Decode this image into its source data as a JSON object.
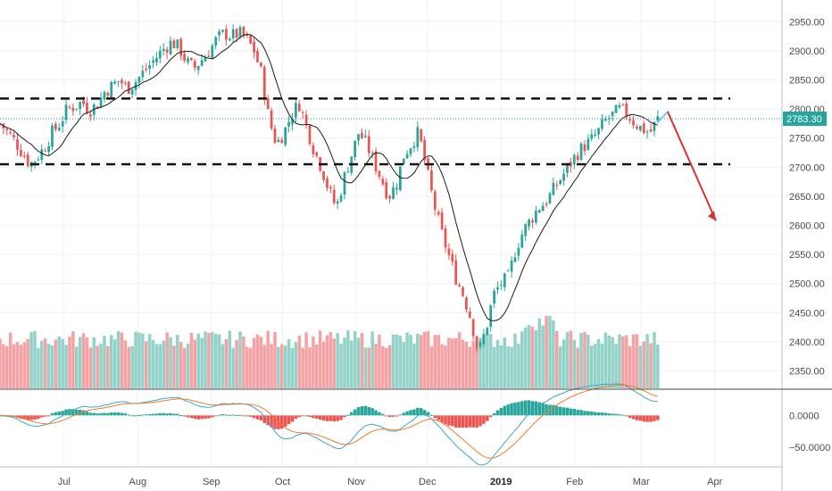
{
  "chart_data": {
    "type": "candlestick",
    "symbol_price_label": "2783.30",
    "current_price": 2783.3,
    "y_axis": {
      "ticks": [
        "2950.00",
        "2900.00",
        "2850.00",
        "2800.00",
        "2750.00",
        "2700.00",
        "2650.00",
        "2600.00",
        "2550.00",
        "2500.00",
        "2450.00",
        "2400.00",
        "2350.00"
      ],
      "range": [
        2320,
        2975
      ]
    },
    "x_axis": {
      "ticks": [
        {
          "label": "Jul",
          "date": "2018-07-01",
          "bold": false
        },
        {
          "label": "Aug",
          "date": "2018-08-01",
          "bold": false
        },
        {
          "label": "Sep",
          "date": "2018-09-01",
          "bold": false
        },
        {
          "label": "Oct",
          "date": "2018-10-01",
          "bold": false
        },
        {
          "label": "Nov",
          "date": "2018-11-01",
          "bold": false
        },
        {
          "label": "Dec",
          "date": "2018-12-01",
          "bold": false
        },
        {
          "label": "2019",
          "date": "2019-01-01",
          "bold": true
        },
        {
          "label": "Feb",
          "date": "2019-02-01",
          "bold": false
        },
        {
          "label": "Mar",
          "date": "2019-03-01",
          "bold": false
        },
        {
          "label": "Apr",
          "date": "2019-04-01",
          "bold": false
        }
      ]
    },
    "price_closes": [
      2775,
      2760,
      2745,
      2725,
      2705,
      2718,
      2735,
      2760,
      2775,
      2800,
      2805,
      2812,
      2798,
      2808,
      2830,
      2840,
      2850,
      2835,
      2845,
      2860,
      2875,
      2890,
      2905,
      2915,
      2905,
      2880,
      2870,
      2885,
      2900,
      2920,
      2930,
      2925,
      2930,
      2920,
      2900,
      2860,
      2780,
      2740,
      2760,
      2790,
      2810,
      2770,
      2730,
      2700,
      2660,
      2630,
      2680,
      2720,
      2760,
      2740,
      2710,
      2680,
      2650,
      2670,
      2720,
      2740,
      2760,
      2700,
      2640,
      2590,
      2550,
      2510,
      2480,
      2440,
      2380,
      2420,
      2480,
      2500,
      2510,
      2560,
      2590,
      2610,
      2630,
      2640,
      2660,
      2680,
      2700,
      2720,
      2735,
      2745,
      2760,
      2780,
      2790,
      2800,
      2790,
      2775,
      2765,
      2760,
      2783
    ],
    "indicator_ticks": [
      "0.0000",
      "−50.0000"
    ],
    "indicator_range": [
      -80,
      40
    ],
    "resistance_level": 2818,
    "support_level": 2705,
    "projection": {
      "from": 2795,
      "to": 2608
    },
    "bounce": {
      "from": 2777,
      "to": 2797
    }
  }
}
